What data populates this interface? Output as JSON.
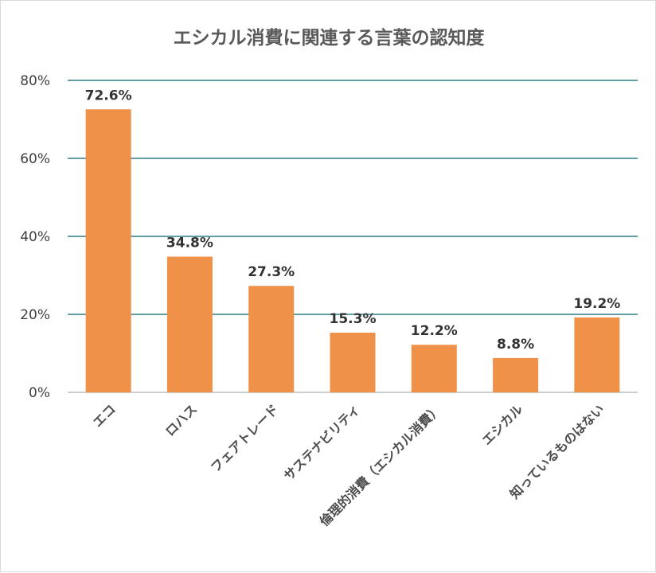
{
  "chart_data": {
    "type": "bar",
    "title": "エシカル消費に関連する言葉の認知度",
    "categories": [
      "エコ",
      "ロハス",
      "フェアトレード",
      "サステナビリティ",
      "倫理的消費（エシカル消費）",
      "エシカル",
      "知っているものはない"
    ],
    "values": [
      72.6,
      34.8,
      27.3,
      15.3,
      12.2,
      8.8,
      19.2
    ],
    "data_labels": [
      "72.6%",
      "34.8%",
      "27.3%",
      "15.3%",
      "12.2%",
      "8.8%",
      "19.2%"
    ],
    "yticks": [
      0,
      20,
      40,
      60,
      80
    ],
    "ytick_labels": [
      "0%",
      "20%",
      "40%",
      "60%",
      "80%"
    ],
    "ylim": [
      0,
      80
    ],
    "xlabel": "",
    "ylabel": "",
    "grid": true,
    "legend": "none",
    "bar_color": "#F0914A",
    "grid_color": "#2E7D86"
  }
}
